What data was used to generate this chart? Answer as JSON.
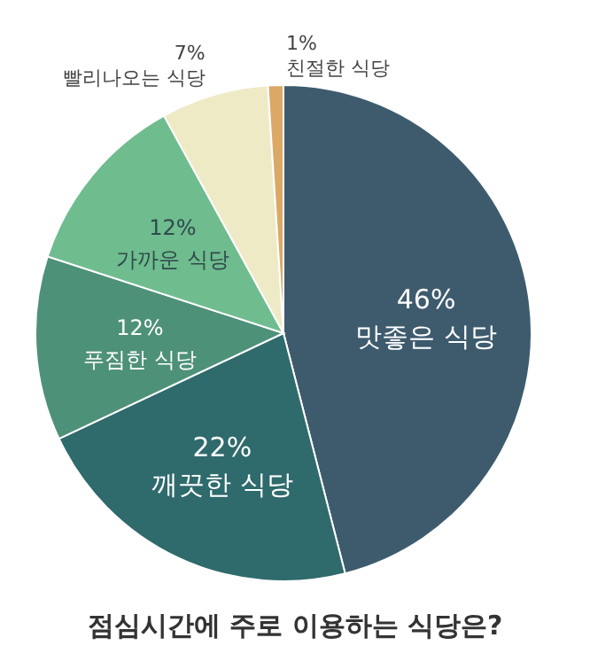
{
  "chart_data": {
    "type": "pie",
    "title": "점심시간에 주로 이용하는 식당은?",
    "categories": [
      "맛좋은 식당",
      "깨끗한 식당",
      "푸짐한 식당",
      "가까운 식당",
      "빨리나오는 식당",
      "친절한 식당"
    ],
    "values": [
      46,
      22,
      12,
      12,
      7,
      1
    ],
    "value_labels": [
      "46%",
      "22%",
      "12%",
      "12%",
      "7%",
      "1%"
    ],
    "colors": [
      "#3e5b6e",
      "#2f6a6c",
      "#4e9179",
      "#6fbc8f",
      "#efeac6",
      "#dca866"
    ]
  }
}
